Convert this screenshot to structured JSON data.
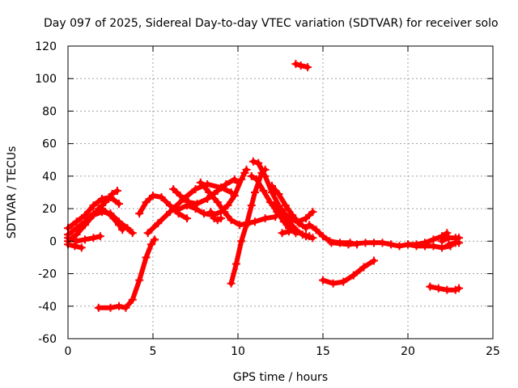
{
  "chart_data": {
    "type": "scatter",
    "title": "Day 097 of 2025, Sidereal Day-to-day VTEC variation (SDTVAR) for receiver solo",
    "xlabel": "GPS time / hours",
    "ylabel": "SDTVAR / TECUs",
    "xlim": [
      0,
      25
    ],
    "ylim": [
      -60,
      120
    ],
    "x_ticks": [
      0,
      5,
      10,
      15,
      20,
      25
    ],
    "y_ticks": [
      -60,
      -40,
      -20,
      0,
      20,
      40,
      60,
      80,
      100,
      120
    ],
    "x_tick_labels": [
      "0",
      "5",
      "10",
      "15",
      "20",
      "25"
    ],
    "y_tick_labels": [
      "-60",
      "-40",
      "-20",
      "0",
      "20",
      "40",
      "60",
      "80",
      "100",
      "120"
    ],
    "grid": true,
    "marker": "+",
    "color": "#ff0000",
    "series": [
      {
        "name": "arc01",
        "points": [
          [
            0.0,
            8
          ],
          [
            0.5,
            12
          ],
          [
            1.0,
            16
          ],
          [
            1.5,
            22
          ],
          [
            2.0,
            26
          ],
          [
            2.5,
            27
          ],
          [
            3.0,
            23
          ]
        ]
      },
      {
        "name": "arc02",
        "points": [
          [
            0.0,
            4
          ],
          [
            0.5,
            8
          ],
          [
            1.0,
            12
          ],
          [
            1.5,
            17
          ],
          [
            2.0,
            20
          ],
          [
            2.5,
            16
          ],
          [
            3.0,
            10
          ],
          [
            3.2,
            7
          ]
        ]
      },
      {
        "name": "arc03",
        "points": [
          [
            0.0,
            0
          ],
          [
            0.5,
            4
          ],
          [
            1.0,
            10
          ],
          [
            1.5,
            16
          ],
          [
            2.0,
            18
          ],
          [
            2.5,
            17
          ],
          [
            3.0,
            12
          ],
          [
            3.5,
            8
          ],
          [
            3.8,
            5
          ]
        ]
      },
      {
        "name": "arc04",
        "points": [
          [
            0.0,
            -2
          ],
          [
            0.4,
            -3
          ],
          [
            0.8,
            -4
          ]
        ]
      },
      {
        "name": "arc05",
        "points": [
          [
            0.0,
            2
          ],
          [
            0.5,
            0
          ],
          [
            1.0,
            1
          ],
          [
            1.5,
            2
          ],
          [
            1.9,
            3
          ]
        ]
      },
      {
        "name": "arc06",
        "points": [
          [
            1.8,
            20
          ],
          [
            2.2,
            24
          ],
          [
            2.6,
            29
          ],
          [
            2.9,
            31
          ]
        ]
      },
      {
        "name": "arc07",
        "points": [
          [
            1.8,
            -41
          ],
          [
            2.5,
            -41
          ],
          [
            3.0,
            -40
          ],
          [
            3.4,
            -41
          ],
          [
            3.8,
            -36
          ],
          [
            4.2,
            -24
          ],
          [
            4.6,
            -10
          ],
          [
            4.9,
            -2
          ],
          [
            5.1,
            1
          ]
        ]
      },
      {
        "name": "arc08",
        "points": [
          [
            4.2,
            17
          ],
          [
            4.6,
            24
          ],
          [
            5.0,
            28
          ],
          [
            5.5,
            27
          ],
          [
            6.0,
            22
          ],
          [
            6.5,
            17
          ],
          [
            7.0,
            14
          ]
        ]
      },
      {
        "name": "arc09",
        "points": [
          [
            4.7,
            5
          ],
          [
            5.3,
            11
          ],
          [
            6.0,
            18
          ],
          [
            6.8,
            26
          ],
          [
            7.5,
            32
          ],
          [
            8.2,
            35
          ],
          [
            9.0,
            33
          ],
          [
            9.6,
            30
          ]
        ]
      },
      {
        "name": "arc10",
        "points": [
          [
            6.2,
            32
          ],
          [
            6.6,
            28
          ],
          [
            7.1,
            24
          ],
          [
            7.6,
            23
          ],
          [
            8.2,
            26
          ],
          [
            8.8,
            31
          ],
          [
            9.3,
            35
          ],
          [
            9.8,
            38
          ],
          [
            10.0,
            36
          ]
        ]
      },
      {
        "name": "arc11",
        "points": [
          [
            6.4,
            19
          ],
          [
            7.0,
            22
          ],
          [
            7.5,
            20
          ],
          [
            8.0,
            17
          ],
          [
            8.5,
            16
          ],
          [
            9.0,
            18
          ],
          [
            9.4,
            22
          ],
          [
            9.8,
            28
          ],
          [
            10.2,
            38
          ],
          [
            10.4,
            42
          ],
          [
            10.5,
            44
          ]
        ]
      },
      {
        "name": "arc12",
        "points": [
          [
            7.8,
            36
          ],
          [
            8.3,
            30
          ],
          [
            8.8,
            24
          ],
          [
            9.2,
            18
          ],
          [
            9.6,
            13
          ],
          [
            10.1,
            10
          ],
          [
            10.6,
            11
          ],
          [
            11.0,
            12
          ],
          [
            11.6,
            14
          ],
          [
            12.2,
            15
          ]
        ]
      },
      {
        "name": "arc13",
        "points": [
          [
            8.4,
            18
          ],
          [
            8.6,
            14
          ],
          [
            8.8,
            13
          ],
          [
            9.0,
            14
          ]
        ]
      },
      {
        "name": "arc14",
        "points": [
          [
            9.6,
            -26
          ],
          [
            9.9,
            -14
          ],
          [
            10.2,
            0
          ],
          [
            10.5,
            10
          ],
          [
            10.8,
            22
          ],
          [
            11.0,
            30
          ],
          [
            11.4,
            42
          ],
          [
            11.6,
            44
          ]
        ]
      },
      {
        "name": "arc15",
        "points": [
          [
            10.8,
            40
          ],
          [
            11.1,
            38
          ],
          [
            11.5,
            31
          ],
          [
            11.9,
            24
          ],
          [
            12.3,
            18
          ],
          [
            12.7,
            12
          ],
          [
            13.0,
            8
          ],
          [
            13.4,
            5
          ]
        ]
      },
      {
        "name": "arc16",
        "points": [
          [
            10.9,
            49
          ],
          [
            11.2,
            48
          ],
          [
            11.6,
            40
          ],
          [
            12.0,
            30
          ],
          [
            12.5,
            20
          ],
          [
            13.0,
            12
          ],
          [
            13.5,
            6
          ],
          [
            14.0,
            3
          ],
          [
            14.4,
            2
          ]
        ]
      },
      {
        "name": "arc17",
        "points": [
          [
            12.0,
            34
          ],
          [
            12.4,
            29
          ],
          [
            12.8,
            22
          ],
          [
            13.2,
            16
          ],
          [
            13.6,
            11
          ],
          [
            14.0,
            8
          ]
        ]
      },
      {
        "name": "arc18",
        "points": [
          [
            12.2,
            23
          ],
          [
            12.6,
            19
          ],
          [
            13.0,
            14
          ],
          [
            13.5,
            12
          ],
          [
            14.0,
            14
          ],
          [
            14.4,
            18
          ]
        ]
      },
      {
        "name": "arc19",
        "points": [
          [
            12.6,
            5
          ],
          [
            13.0,
            6
          ],
          [
            13.4,
            7
          ],
          [
            13.8,
            4
          ],
          [
            14.2,
            3
          ]
        ]
      },
      {
        "name": "arc20",
        "points": [
          [
            13.4,
            109
          ],
          [
            13.7,
            108
          ],
          [
            14.1,
            107
          ]
        ]
      },
      {
        "name": "arc21",
        "points": [
          [
            14.2,
            10
          ],
          [
            14.6,
            7
          ],
          [
            15.0,
            3
          ],
          [
            15.4,
            0
          ],
          [
            16.0,
            -1
          ],
          [
            16.6,
            -1
          ],
          [
            17.0,
            -2
          ]
        ]
      },
      {
        "name": "arc22",
        "points": [
          [
            15.0,
            -24
          ],
          [
            15.6,
            -26
          ],
          [
            16.2,
            -25
          ],
          [
            16.8,
            -21
          ],
          [
            17.4,
            -16
          ],
          [
            18.0,
            -12
          ]
        ]
      },
      {
        "name": "arc23",
        "points": [
          [
            15.5,
            -1
          ],
          [
            16.5,
            -2
          ],
          [
            17.5,
            -1
          ],
          [
            18.0,
            -1
          ],
          [
            18.5,
            -1
          ],
          [
            19.0,
            -2
          ],
          [
            19.5,
            -3
          ],
          [
            20.0,
            -2
          ],
          [
            20.5,
            -3
          ],
          [
            21.0,
            -3
          ],
          [
            21.5,
            -3
          ],
          [
            22.0,
            -4
          ],
          [
            22.5,
            -3
          ]
        ]
      },
      {
        "name": "arc24",
        "points": [
          [
            20.0,
            -2
          ],
          [
            20.5,
            -2
          ],
          [
            21.0,
            -1
          ],
          [
            21.5,
            1
          ],
          [
            22.0,
            3
          ],
          [
            22.3,
            5
          ]
        ]
      },
      {
        "name": "arc25",
        "points": [
          [
            21.3,
            -28
          ],
          [
            21.8,
            -29
          ],
          [
            22.3,
            -30
          ],
          [
            22.8,
            -30
          ],
          [
            23.0,
            -29
          ]
        ]
      },
      {
        "name": "arc26",
        "points": [
          [
            22.0,
            0
          ],
          [
            22.4,
            2
          ],
          [
            22.8,
            2
          ],
          [
            23.0,
            2
          ]
        ]
      },
      {
        "name": "arc27",
        "points": [
          [
            22.4,
            -2
          ],
          [
            22.8,
            -1
          ],
          [
            23.0,
            -1
          ]
        ]
      }
    ]
  }
}
